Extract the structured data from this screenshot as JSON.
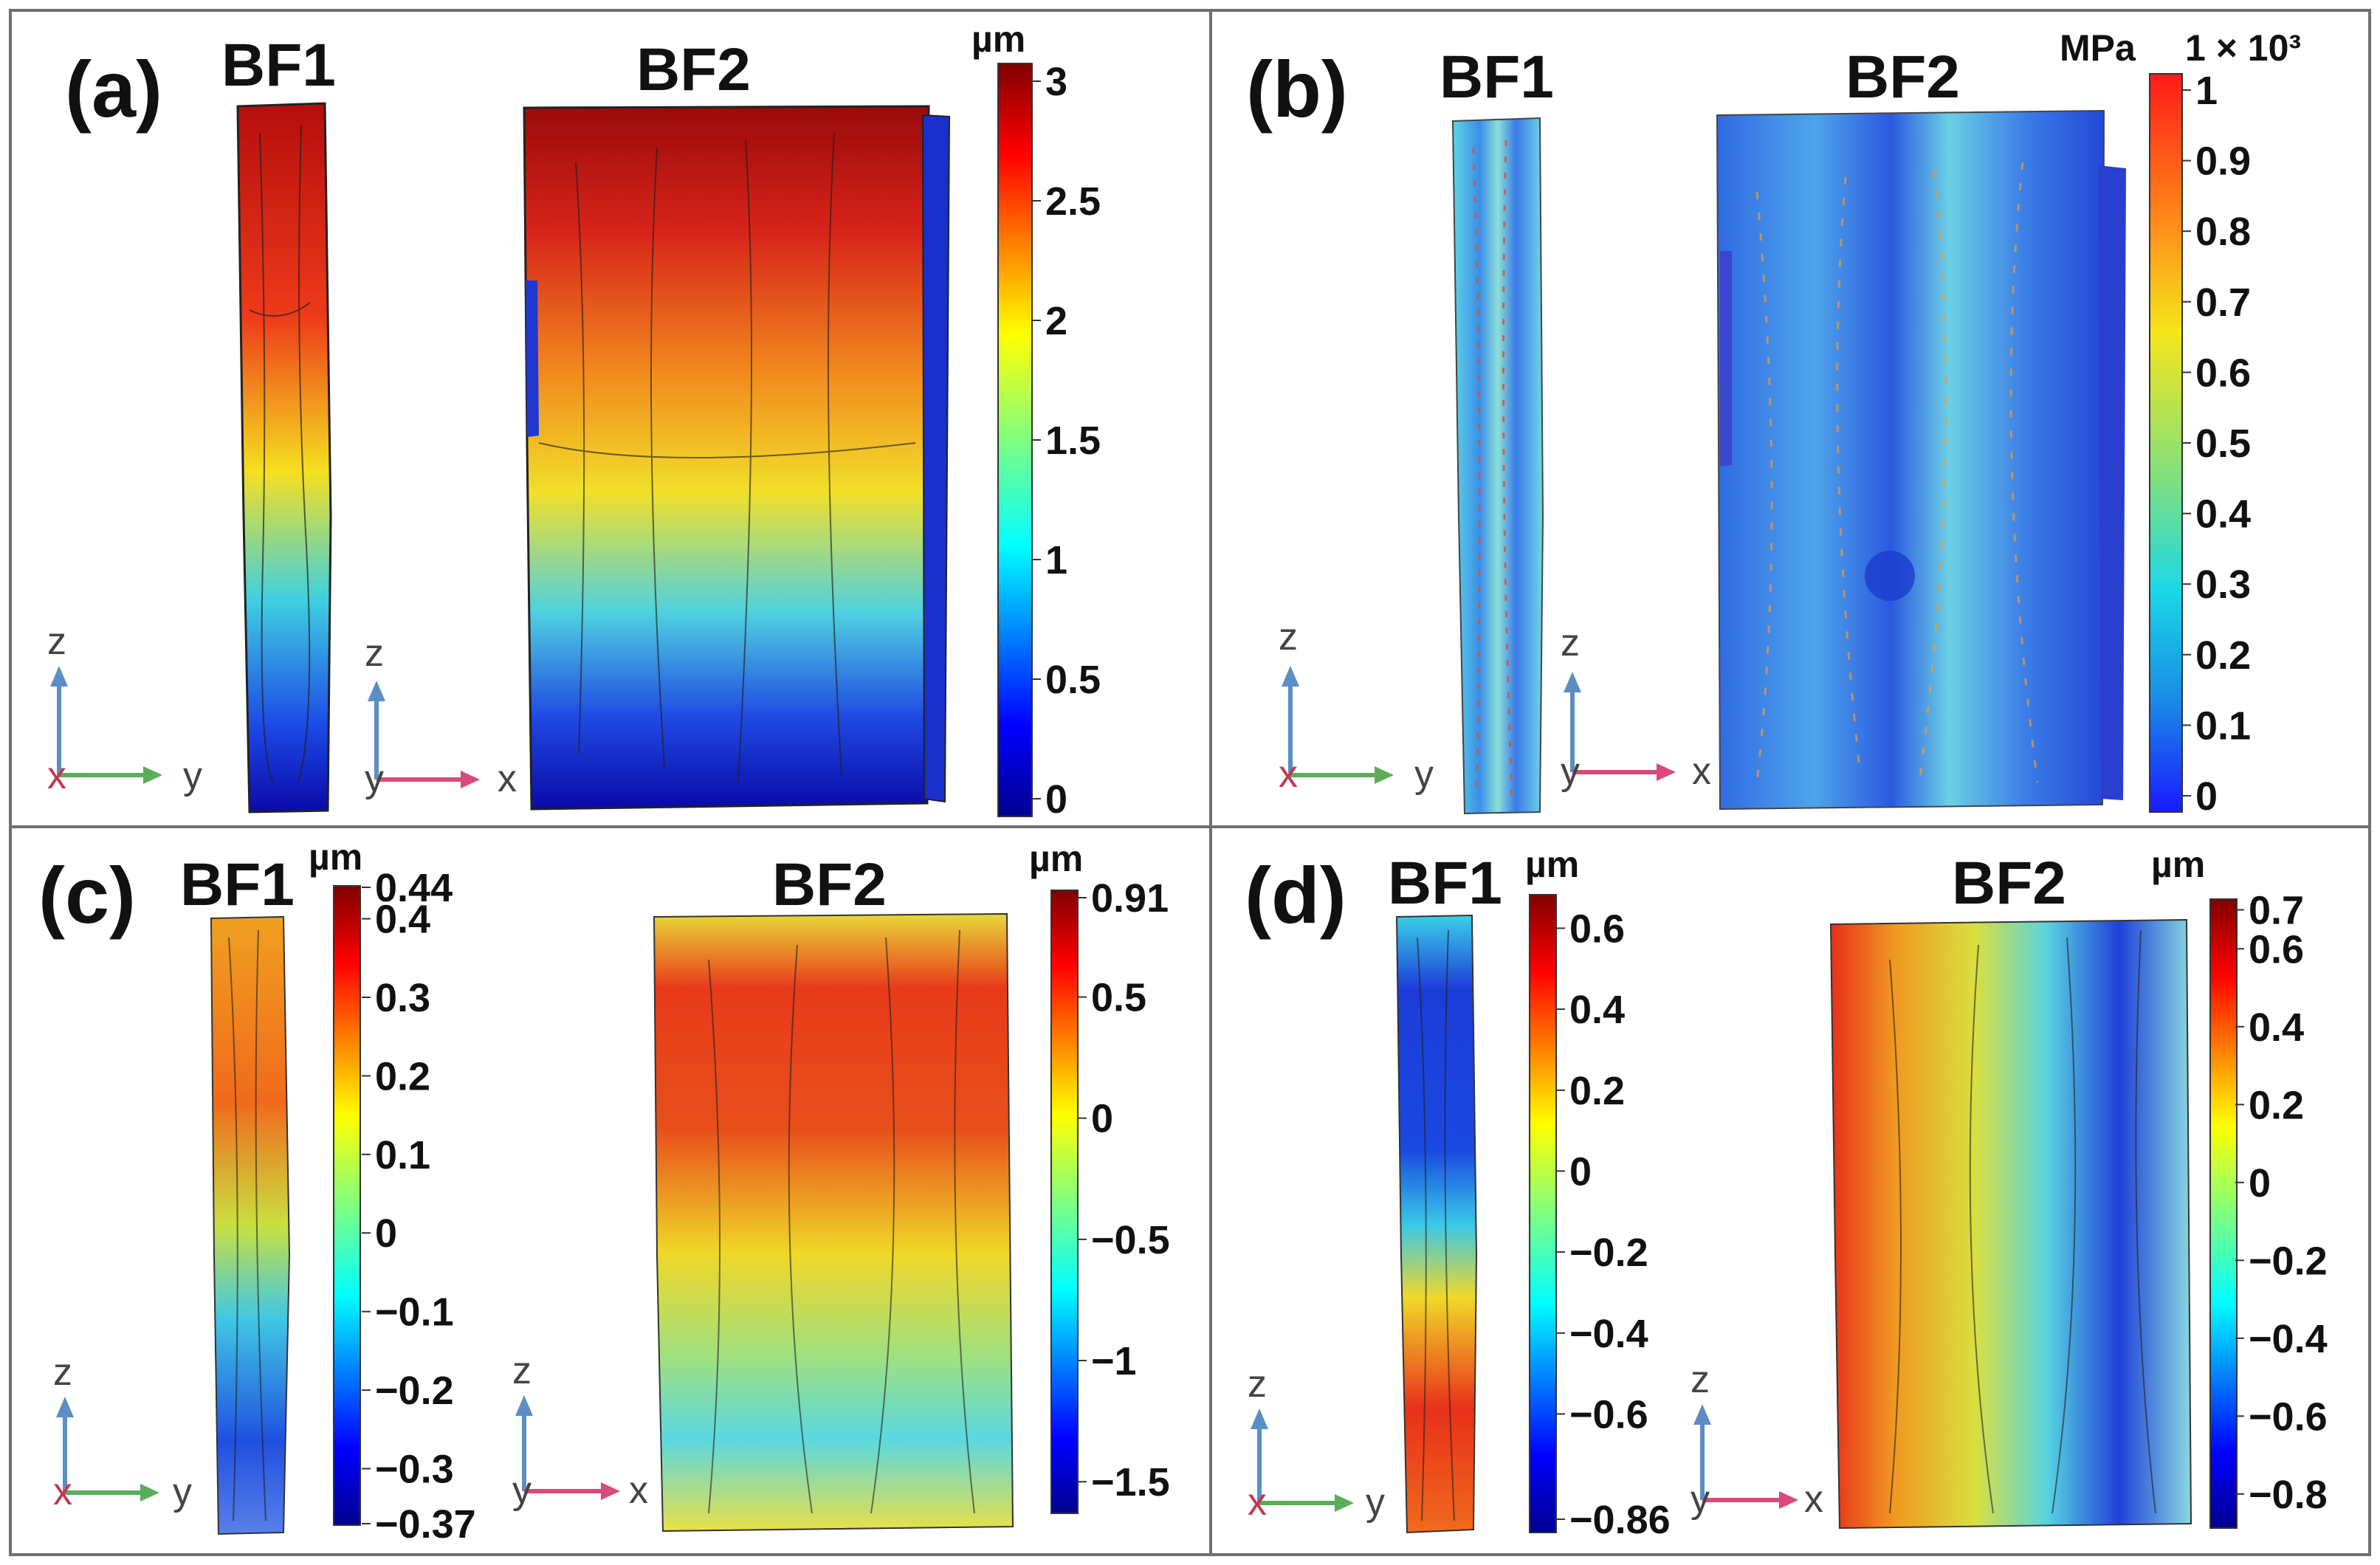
{
  "figure": {
    "panels": [
      {
        "id": "a",
        "label": "(a)",
        "samples": [
          "BF1",
          "BF2"
        ],
        "colorbar": {
          "unit": "µm",
          "exp": "",
          "palette": "jet",
          "ticks": [
            "3",
            "2.5",
            "2",
            "1.5",
            "1",
            "0.5",
            "0"
          ],
          "tick_values": [
            3,
            2.5,
            2,
            1.5,
            1,
            0.5,
            0
          ],
          "range": [
            0,
            3
          ]
        },
        "axes": [
          {
            "up": "z",
            "right": "y",
            "origin": "x"
          },
          {
            "up": "z",
            "right": "x",
            "origin": "y"
          }
        ],
        "fill": {
          "bf1": {
            "dir": "v",
            "stops": [
              [
                0,
                "#b50d0d"
              ],
              [
                0.3,
                "#ee3a1a"
              ],
              [
                0.52,
                "#f5e020"
              ],
              [
                0.7,
                "#3fd0e0"
              ],
              [
                0.88,
                "#1c48e6"
              ],
              [
                1,
                "#0a0aa8"
              ]
            ]
          },
          "bf2": {
            "dir": "v",
            "stops": [
              [
                0,
                "#9a0a0a"
              ],
              [
                0.18,
                "#d8241a"
              ],
              [
                0.38,
                "#f28a1e"
              ],
              [
                0.55,
                "#f1e02a"
              ],
              [
                0.72,
                "#4fd1df"
              ],
              [
                0.87,
                "#1f49e2"
              ],
              [
                1,
                "#0a0aa8"
              ]
            ]
          }
        }
      },
      {
        "id": "b",
        "label": "(b)",
        "samples": [
          "BF1",
          "BF2"
        ],
        "colorbar": {
          "unit": "MPa",
          "exp": "1 × 10³",
          "palette": "rainbow",
          "ticks": [
            "1",
            "0.9",
            "0.8",
            "0.7",
            "0.6",
            "0.5",
            "0.4",
            "0.3",
            "0.2",
            "0.1",
            "0"
          ],
          "tick_values": [
            1,
            0.9,
            0.8,
            0.7,
            0.6,
            0.5,
            0.4,
            0.3,
            0.2,
            0.1,
            0
          ],
          "range": [
            0,
            1
          ]
        },
        "axes": [
          {
            "up": "z",
            "right": "y",
            "origin": "x"
          },
          {
            "up": "z",
            "right": "x",
            "origin": "y"
          }
        ],
        "fill": {
          "bf1": {
            "dir": "h",
            "stops": [
              [
                0,
                "#5fd4e6"
              ],
              [
                0.3,
                "#3a8ee8"
              ],
              [
                0.5,
                "#8be0d8"
              ],
              [
                0.7,
                "#3a7ae8"
              ],
              [
                1,
                "#6fd8e6"
              ]
            ]
          },
          "bf2": {
            "dir": "h",
            "stops": [
              [
                0,
                "#2f6ae4"
              ],
              [
                0.25,
                "#4fa4ea"
              ],
              [
                0.45,
                "#2a5ae0"
              ],
              [
                0.6,
                "#6ccfe4"
              ],
              [
                0.8,
                "#3a7ce6"
              ],
              [
                1,
                "#2448d8"
              ]
            ]
          }
        }
      },
      {
        "id": "c",
        "label": "(c)",
        "samples": [
          "BF1",
          "BF2"
        ],
        "colorbar1": {
          "unit": "µm",
          "exp": "",
          "palette": "jet",
          "ticks": [
            "0.44",
            "0.4",
            "0.3",
            "0.2",
            "0.1",
            "0",
            "−0.1",
            "−0.2",
            "−0.3",
            "−0.37"
          ],
          "tick_values": [
            0.44,
            0.4,
            0.3,
            0.2,
            0.1,
            0,
            -0.1,
            -0.2,
            -0.3,
            -0.37
          ],
          "range": [
            -0.37,
            0.44
          ]
        },
        "colorbar2": {
          "unit": "µm",
          "exp": "",
          "palette": "jet",
          "ticks": [
            "0.91",
            "0.5",
            "0",
            "−0.5",
            "−1",
            "−1.5"
          ],
          "tick_values": [
            0.91,
            0.5,
            0,
            -0.5,
            -1,
            -1.5
          ],
          "range": [
            -1.6,
            0.91
          ]
        },
        "axes": [
          {
            "up": "z",
            "right": "y",
            "origin": "x"
          },
          {
            "up": "z",
            "right": "x",
            "origin": "y"
          }
        ],
        "fill": {
          "bf1": {
            "dir": "v",
            "stops": [
              [
                0,
                "#f0a020"
              ],
              [
                0.3,
                "#f06a1c"
              ],
              [
                0.5,
                "#c8e040"
              ],
              [
                0.65,
                "#40c8e4"
              ],
              [
                0.85,
                "#2050e0"
              ],
              [
                1,
                "#5880e8"
              ]
            ]
          },
          "bf2": {
            "dir": "v",
            "stops": [
              [
                0,
                "#e8d838"
              ],
              [
                0.12,
                "#e83a1a"
              ],
              [
                0.35,
                "#e8501c"
              ],
              [
                0.55,
                "#f0d828"
              ],
              [
                0.72,
                "#9ee080"
              ],
              [
                0.85,
                "#5ad8e0"
              ],
              [
                1,
                "#e8e048"
              ]
            ]
          }
        }
      },
      {
        "id": "d",
        "label": "(d)",
        "samples": [
          "BF1",
          "BF2"
        ],
        "colorbar1": {
          "unit": "µm",
          "exp": "",
          "palette": "jet",
          "ticks": [
            "0.6",
            "0.4",
            "0.2",
            "0",
            "−0.2",
            "−0.4",
            "−0.6",
            "−0.86"
          ],
          "tick_values": [
            0.6,
            0.4,
            0.2,
            0,
            -0.2,
            -0.4,
            -0.6,
            -0.86
          ],
          "range": [
            -0.86,
            0.65
          ]
        },
        "colorbar2": {
          "unit": "µm",
          "exp": "",
          "palette": "jet",
          "ticks": [
            "0.7",
            "0.6",
            "0.4",
            "0.2",
            "0",
            "−0.2",
            "−0.4",
            "−0.6",
            "−0.8"
          ],
          "tick_values": [
            0.7,
            0.6,
            0.4,
            0.2,
            0,
            -0.2,
            -0.4,
            -0.6,
            -0.8
          ],
          "range": [
            -0.88,
            0.72
          ]
        },
        "axes": [
          {
            "up": "z",
            "right": "y",
            "origin": "x"
          },
          {
            "up": "z",
            "right": "x",
            "origin": "y"
          }
        ],
        "fill": {
          "bf1": {
            "dir": "v",
            "stops": [
              [
                0,
                "#3ad0e8"
              ],
              [
                0.12,
                "#1c3cd8"
              ],
              [
                0.38,
                "#1a48e0"
              ],
              [
                0.5,
                "#38c8e8"
              ],
              [
                0.62,
                "#f0d828"
              ],
              [
                0.8,
                "#e8301a"
              ],
              [
                1,
                "#f06a1c"
              ]
            ]
          },
          "bf2": {
            "dir": "h",
            "stops": [
              [
                0,
                "#e8301a"
              ],
              [
                0.18,
                "#f09a22"
              ],
              [
                0.4,
                "#d8e040"
              ],
              [
                0.6,
                "#58d4e0"
              ],
              [
                0.8,
                "#2040d8"
              ],
              [
                1,
                "#88d8e0"
              ]
            ]
          }
        }
      }
    ]
  }
}
